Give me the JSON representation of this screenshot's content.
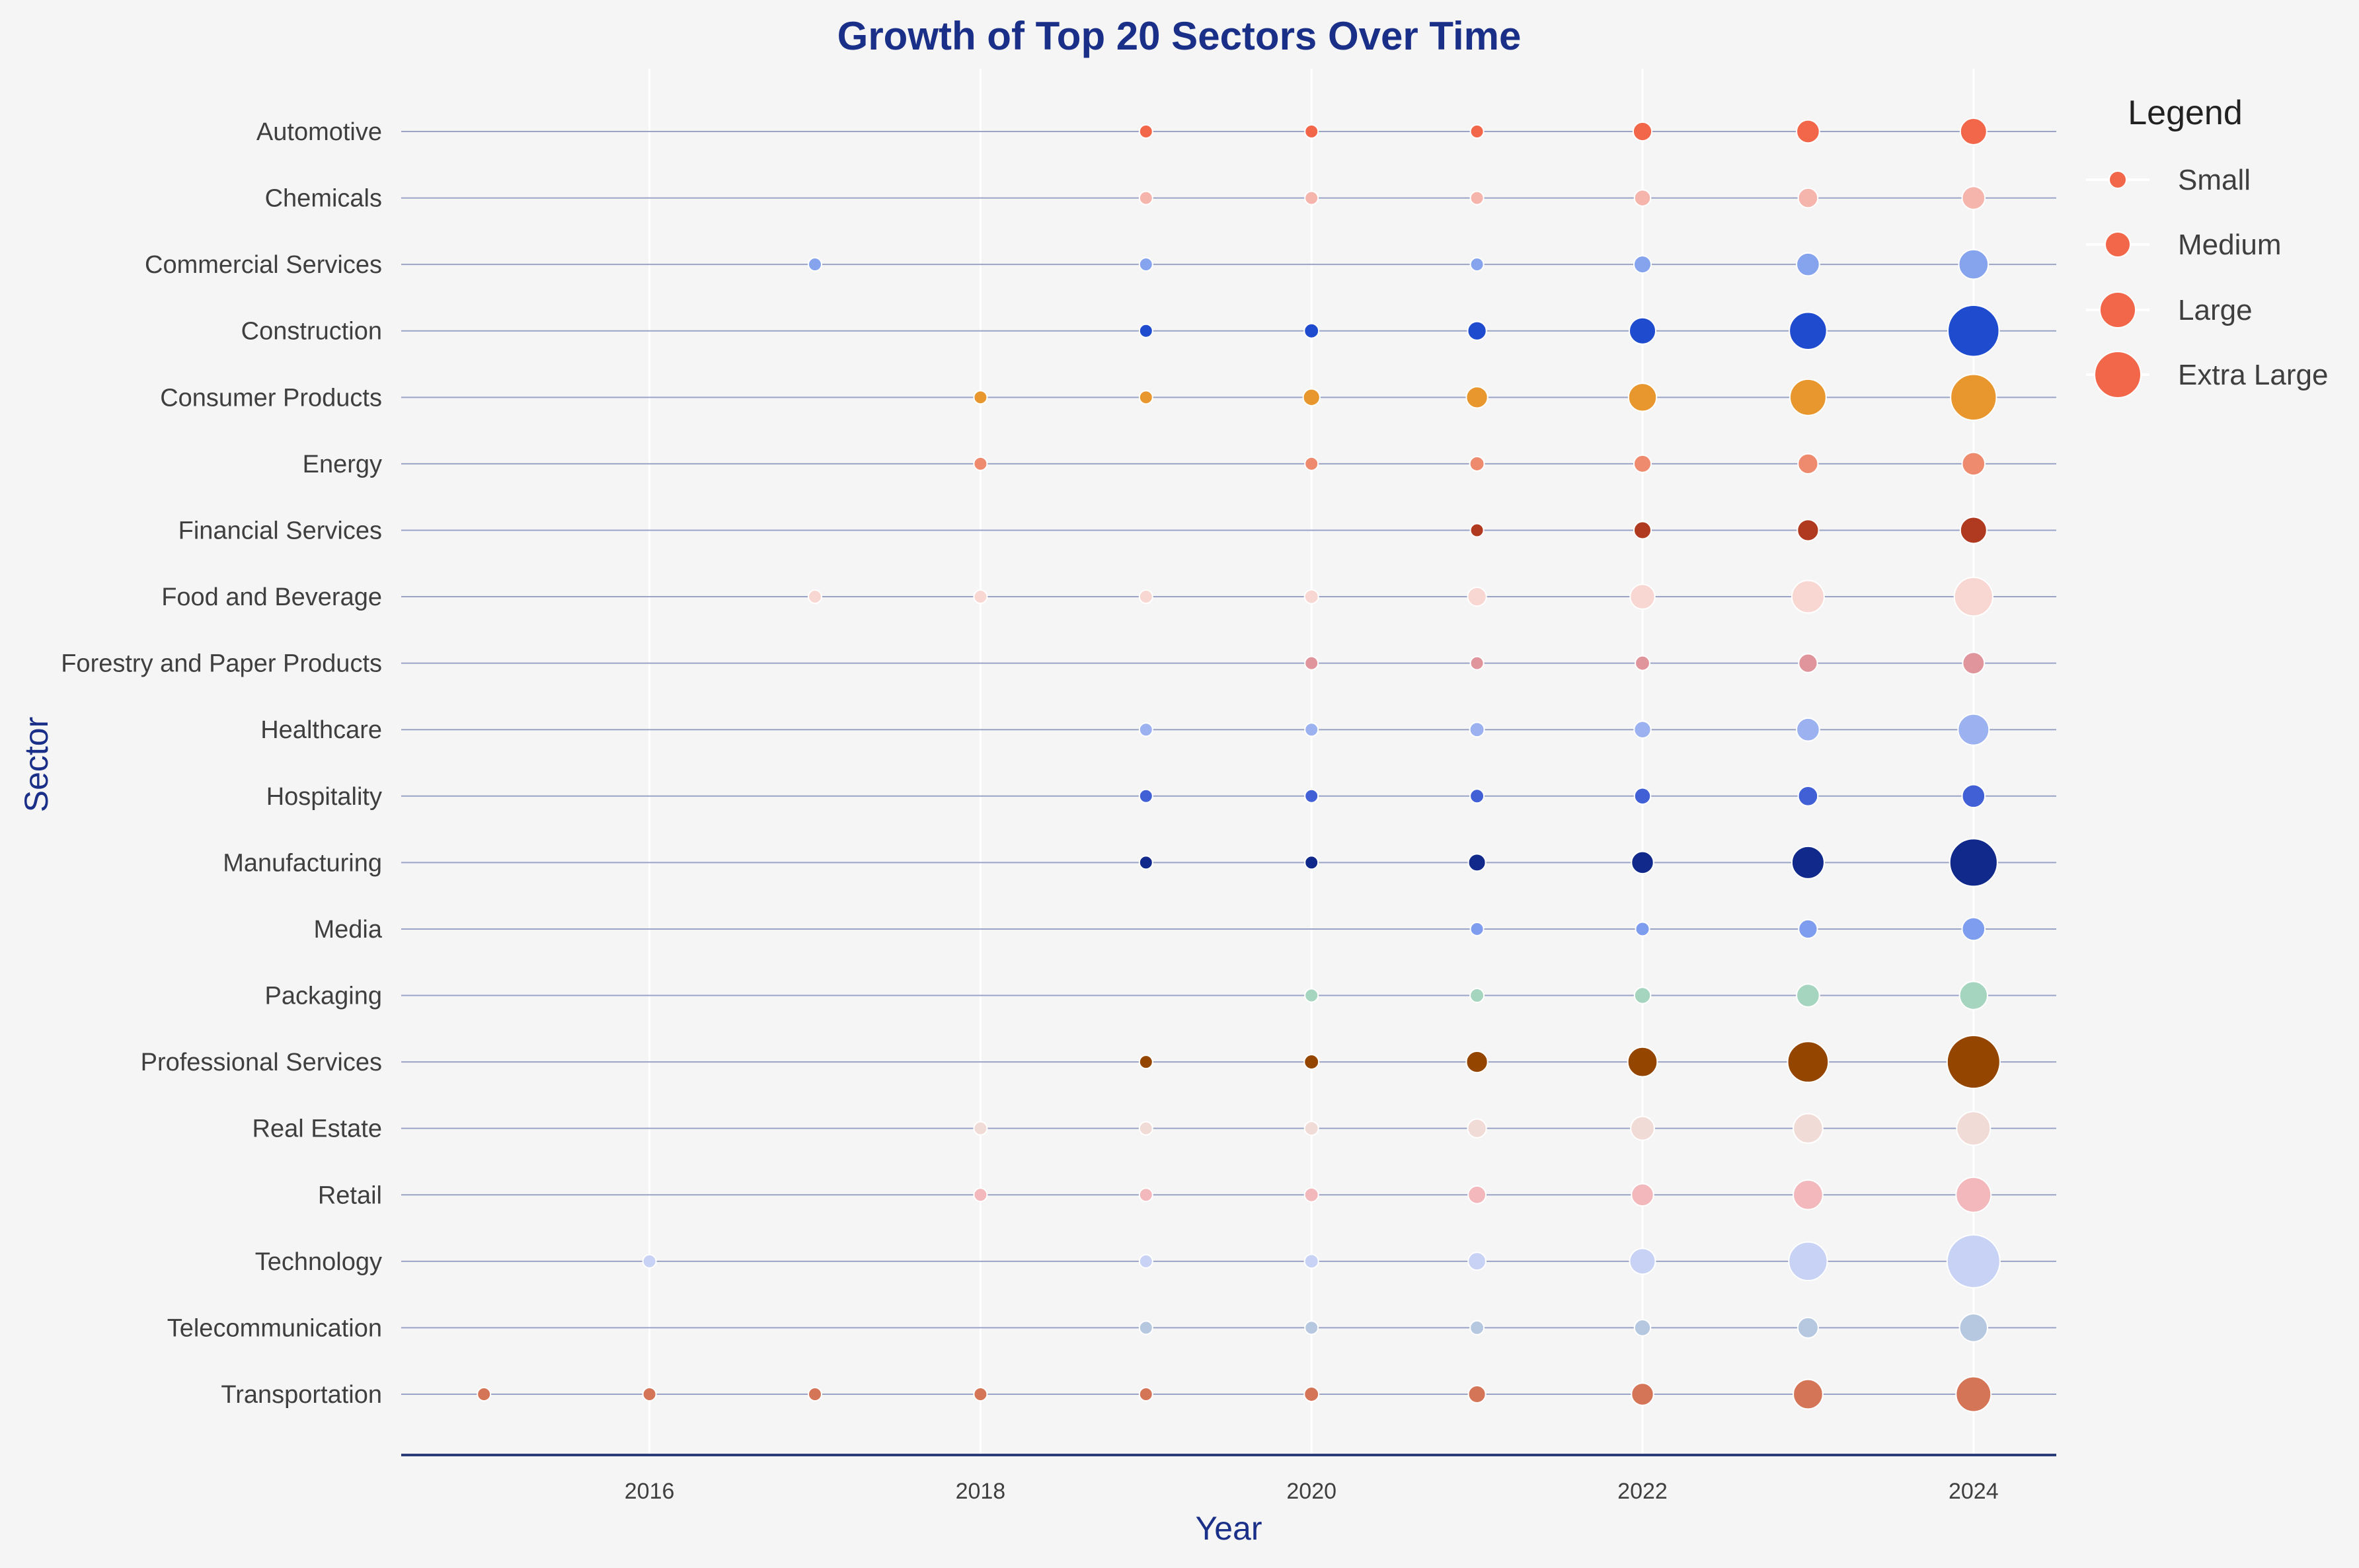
{
  "chart_data": {
    "type": "scatter",
    "title": "Growth of Top 20 Sectors Over Time",
    "xlabel": "Year",
    "ylabel": "Sector",
    "xlim": [
      2014.5,
      2024.5
    ],
    "x_ticks": [
      2016,
      2018,
      2020,
      2022,
      2024
    ],
    "grid": true,
    "legend": {
      "title": "Legend",
      "position": "right",
      "entries": [
        "Small",
        "Medium",
        "Large",
        "Extra Large"
      ],
      "color": "#f2664a"
    },
    "categories": [
      "Automotive",
      "Chemicals",
      "Commercial Services",
      "Construction",
      "Consumer Products",
      "Energy",
      "Financial Services",
      "Food and Beverage",
      "Forestry and Paper Products",
      "Healthcare",
      "Hospitality",
      "Manufacturing",
      "Media",
      "Packaging",
      "Professional Services",
      "Real Estate",
      "Retail",
      "Technology",
      "Telecommunication",
      "Transportation"
    ],
    "series": [
      {
        "color": "#f2664a",
        "points": [
          [
            2019,
            1
          ],
          [
            2020,
            1
          ],
          [
            2021,
            1
          ],
          [
            2022,
            2
          ],
          [
            2023,
            3
          ],
          [
            2024,
            4
          ]
        ]
      },
      {
        "color": "#f5b5ad",
        "points": [
          [
            2019,
            1
          ],
          [
            2020,
            1
          ],
          [
            2021,
            1
          ],
          [
            2022,
            1.5
          ],
          [
            2023,
            2.2
          ],
          [
            2024,
            3
          ]
        ]
      },
      {
        "color": "#86a3ee",
        "points": [
          [
            2017,
            1
          ],
          [
            2019,
            1
          ],
          [
            2021,
            1
          ],
          [
            2022,
            1.7
          ],
          [
            2023,
            3
          ],
          [
            2024,
            5
          ]
        ]
      },
      {
        "color": "#1f4cce",
        "points": [
          [
            2019,
            1
          ],
          [
            2020,
            1.2
          ],
          [
            2021,
            2
          ],
          [
            2022,
            4
          ],
          [
            2023,
            8
          ],
          [
            2024,
            15
          ]
        ]
      },
      {
        "color": "#e8962e",
        "points": [
          [
            2018,
            1
          ],
          [
            2019,
            1
          ],
          [
            2020,
            1.6
          ],
          [
            2021,
            2.6
          ],
          [
            2022,
            4.5
          ],
          [
            2023,
            7.5
          ],
          [
            2024,
            12
          ]
        ]
      },
      {
        "color": "#ee8a6e",
        "points": [
          [
            2018,
            1
          ],
          [
            2020,
            1
          ],
          [
            2021,
            1.2
          ],
          [
            2022,
            1.7
          ],
          [
            2023,
            2.3
          ],
          [
            2024,
            3
          ]
        ]
      },
      {
        "color": "#b03a20",
        "points": [
          [
            2021,
            1
          ],
          [
            2022,
            1.7
          ],
          [
            2023,
            2.6
          ],
          [
            2024,
            4
          ]
        ]
      },
      {
        "color": "#f8d6d1",
        "points": [
          [
            2017,
            1
          ],
          [
            2018,
            1
          ],
          [
            2019,
            1
          ],
          [
            2020,
            1.1
          ],
          [
            2021,
            2
          ],
          [
            2022,
            3.5
          ],
          [
            2023,
            6
          ],
          [
            2024,
            8.5
          ]
        ]
      },
      {
        "color": "#e0949b",
        "points": [
          [
            2020,
            1
          ],
          [
            2021,
            1
          ],
          [
            2022,
            1.2
          ],
          [
            2023,
            2
          ],
          [
            2024,
            2.7
          ]
        ]
      },
      {
        "color": "#9cb2f0",
        "points": [
          [
            2019,
            1
          ],
          [
            2020,
            1
          ],
          [
            2021,
            1.2
          ],
          [
            2022,
            1.6
          ],
          [
            2023,
            3
          ],
          [
            2024,
            5.5
          ]
        ]
      },
      {
        "color": "#4160d6",
        "points": [
          [
            2019,
            1
          ],
          [
            2020,
            1
          ],
          [
            2021,
            1.1
          ],
          [
            2022,
            1.5
          ],
          [
            2023,
            2.2
          ],
          [
            2024,
            3
          ]
        ]
      },
      {
        "color": "#11298a",
        "points": [
          [
            2019,
            1
          ],
          [
            2020,
            1
          ],
          [
            2021,
            1.7
          ],
          [
            2022,
            2.8
          ],
          [
            2023,
            6
          ],
          [
            2024,
            13
          ]
        ]
      },
      {
        "color": "#7f9def",
        "points": [
          [
            2021,
            1
          ],
          [
            2022,
            1.1
          ],
          [
            2023,
            2
          ],
          [
            2024,
            3
          ]
        ]
      },
      {
        "color": "#a6d5bf",
        "points": [
          [
            2020,
            1
          ],
          [
            2021,
            1.1
          ],
          [
            2022,
            1.5
          ],
          [
            2023,
            3
          ],
          [
            2024,
            4.5
          ]
        ]
      },
      {
        "color": "#944500",
        "points": [
          [
            2019,
            1
          ],
          [
            2020,
            1.2
          ],
          [
            2021,
            2.6
          ],
          [
            2022,
            5
          ],
          [
            2023,
            9.5
          ],
          [
            2024,
            16
          ]
        ]
      },
      {
        "color": "#f1dbd6",
        "points": [
          [
            2018,
            1
          ],
          [
            2019,
            1
          ],
          [
            2020,
            1.1
          ],
          [
            2021,
            2
          ],
          [
            2022,
            3.2
          ],
          [
            2023,
            5
          ],
          [
            2024,
            6.5
          ]
        ]
      },
      {
        "color": "#f2b8bb",
        "points": [
          [
            2018,
            1
          ],
          [
            2019,
            1
          ],
          [
            2020,
            1.1
          ],
          [
            2021,
            1.8
          ],
          [
            2022,
            2.8
          ],
          [
            2023,
            5
          ],
          [
            2024,
            7
          ]
        ]
      },
      {
        "color": "#c8d2f4",
        "points": [
          [
            2016,
            1
          ],
          [
            2019,
            1
          ],
          [
            2020,
            1.1
          ],
          [
            2021,
            1.8
          ],
          [
            2022,
            3.8
          ],
          [
            2023,
            8.5
          ],
          [
            2024,
            16
          ]
        ]
      },
      {
        "color": "#b6c8e0",
        "points": [
          [
            2019,
            1
          ],
          [
            2020,
            1
          ],
          [
            2021,
            1.1
          ],
          [
            2022,
            1.5
          ],
          [
            2023,
            2.4
          ],
          [
            2024,
            4.5
          ]
        ]
      },
      {
        "color": "#d57558",
        "points": [
          [
            2015,
            1
          ],
          [
            2016,
            1
          ],
          [
            2017,
            1
          ],
          [
            2018,
            1
          ],
          [
            2019,
            1
          ],
          [
            2020,
            1.2
          ],
          [
            2021,
            1.7
          ],
          [
            2022,
            2.8
          ],
          [
            2023,
            5
          ],
          [
            2024,
            7
          ]
        ]
      }
    ]
  }
}
